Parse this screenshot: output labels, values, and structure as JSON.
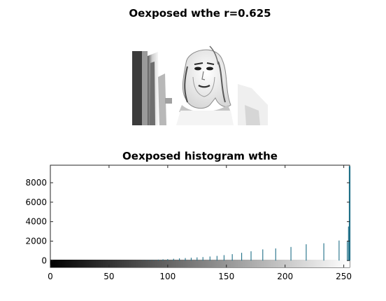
{
  "figure": {
    "top_title": "Oexposed wthe r=0.625",
    "image_panel": "overexposed grayscale photo of a woman's face"
  },
  "chart_data": {
    "type": "bar",
    "title": "Oexposed histogram wthe",
    "xlabel": "",
    "ylabel": "",
    "xlim": [
      0,
      255
    ],
    "ylim": [
      -700,
      9800
    ],
    "xticks": [
      "0",
      "50",
      "100",
      "150",
      "200",
      "250"
    ],
    "yticks": [
      "0",
      "2000",
      "4000",
      "6000",
      "8000"
    ],
    "xtick_values": [
      0,
      50,
      100,
      150,
      200,
      250
    ],
    "ytick_values": [
      0,
      2000,
      4000,
      6000,
      8000
    ],
    "grid": false,
    "stem_color": "#1f6f87",
    "colorbar": "grayscale 0 to 255",
    "x": [
      79,
      82,
      85,
      88,
      92,
      96,
      100,
      105,
      110,
      115,
      120,
      125,
      130,
      136,
      142,
      148,
      155,
      163,
      171,
      181,
      192,
      205,
      218,
      233,
      246,
      253,
      254,
      255
    ],
    "values": [
      30,
      40,
      55,
      75,
      100,
      130,
      150,
      190,
      230,
      260,
      290,
      330,
      360,
      420,
      480,
      560,
      660,
      800,
      960,
      1150,
      1250,
      1400,
      1680,
      1780,
      2060,
      1950,
      3500,
      9700
    ]
  }
}
